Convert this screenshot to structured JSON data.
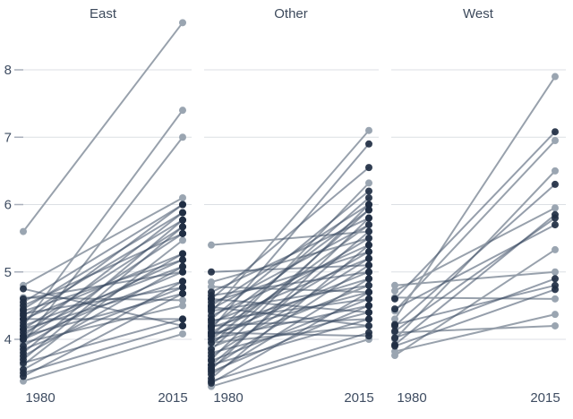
{
  "chart_data": {
    "type": "line",
    "subtype": "slopegraph",
    "title": "",
    "x_labels": [
      "1980",
      "2015"
    ],
    "y_ticks": [
      4,
      5,
      6,
      7,
      8
    ],
    "ylim": [
      3.2,
      8.8
    ],
    "grid": "horizontal-per-panel",
    "legend": "none",
    "panels": [
      {
        "label": "East",
        "series": [
          [
            5.6,
            8.7,
            "l"
          ],
          [
            4.2,
            7.4,
            "l"
          ],
          [
            3.95,
            7.0,
            "l"
          ],
          [
            4.8,
            6.1,
            "l"
          ],
          [
            4.55,
            6.0,
            "d"
          ],
          [
            4.25,
            6.0,
            "d"
          ],
          [
            4.45,
            5.88,
            "d"
          ],
          [
            4.05,
            5.88,
            "d"
          ],
          [
            3.8,
            5.77,
            "d"
          ],
          [
            4.35,
            5.77,
            "d"
          ],
          [
            4.15,
            5.67,
            "d"
          ],
          [
            3.7,
            5.67,
            "d"
          ],
          [
            4.0,
            5.57,
            "d"
          ],
          [
            4.5,
            5.57,
            "d"
          ],
          [
            3.62,
            5.47,
            "l"
          ],
          [
            4.3,
            5.27,
            "d"
          ],
          [
            3.9,
            5.27,
            "d"
          ],
          [
            4.1,
            5.18,
            "d"
          ],
          [
            4.42,
            5.18,
            "d"
          ],
          [
            3.75,
            5.08,
            "d"
          ],
          [
            4.2,
            5.08,
            "d"
          ],
          [
            4.0,
            5.0,
            "d"
          ],
          [
            4.6,
            5.0,
            "d"
          ],
          [
            3.55,
            4.86,
            "d"
          ],
          [
            4.15,
            4.86,
            "d"
          ],
          [
            3.85,
            4.77,
            "d"
          ],
          [
            4.38,
            4.77,
            "d"
          ],
          [
            3.45,
            4.68,
            "d"
          ],
          [
            4.05,
            4.68,
            "d"
          ],
          [
            4.62,
            4.58,
            "l"
          ],
          [
            3.95,
            4.5,
            "l"
          ],
          [
            4.3,
            4.3,
            "d"
          ],
          [
            3.65,
            4.3,
            "d"
          ],
          [
            3.5,
            4.2,
            "d"
          ],
          [
            4.75,
            4.2,
            "d"
          ],
          [
            3.38,
            4.08,
            "l"
          ]
        ]
      },
      {
        "label": "Other",
        "series": [
          [
            4.4,
            7.1,
            "l"
          ],
          [
            4.15,
            6.9,
            "d"
          ],
          [
            4.6,
            6.55,
            "d"
          ],
          [
            3.9,
            6.32,
            "l"
          ],
          [
            4.3,
            6.2,
            "d"
          ],
          [
            4.05,
            6.1,
            "d"
          ],
          [
            4.5,
            6.0,
            "d"
          ],
          [
            3.7,
            6.0,
            "d"
          ],
          [
            4.2,
            5.92,
            "d"
          ],
          [
            3.85,
            5.92,
            "d"
          ],
          [
            4.7,
            5.8,
            "d"
          ],
          [
            3.55,
            5.8,
            "d"
          ],
          [
            4.0,
            5.7,
            "l"
          ],
          [
            4.45,
            5.7,
            "d"
          ],
          [
            5.4,
            5.6,
            "l"
          ],
          [
            3.62,
            5.6,
            "d"
          ],
          [
            4.85,
            5.5,
            "l"
          ],
          [
            4.1,
            5.5,
            "d"
          ],
          [
            3.42,
            5.4,
            "d"
          ],
          [
            4.35,
            5.4,
            "d"
          ],
          [
            3.95,
            5.3,
            "d"
          ],
          [
            4.55,
            5.3,
            "d"
          ],
          [
            3.75,
            5.2,
            "d"
          ],
          [
            4.25,
            5.2,
            "d"
          ],
          [
            5.0,
            5.1,
            "d"
          ],
          [
            3.58,
            5.1,
            "d"
          ],
          [
            4.05,
            5.0,
            "d"
          ],
          [
            4.65,
            5.0,
            "d"
          ],
          [
            3.48,
            4.9,
            "d"
          ],
          [
            4.18,
            4.9,
            "d"
          ],
          [
            3.88,
            4.8,
            "l"
          ],
          [
            4.42,
            4.8,
            "d"
          ],
          [
            3.35,
            4.7,
            "d"
          ],
          [
            4.08,
            4.7,
            "d"
          ],
          [
            4.78,
            4.7,
            "l"
          ],
          [
            3.68,
            4.6,
            "d"
          ],
          [
            4.28,
            4.6,
            "d"
          ],
          [
            3.52,
            4.5,
            "d"
          ],
          [
            4.0,
            4.5,
            "d"
          ],
          [
            4.6,
            4.4,
            "d"
          ],
          [
            3.8,
            4.4,
            "d"
          ],
          [
            4.2,
            4.3,
            "d"
          ],
          [
            3.62,
            4.3,
            "d"
          ],
          [
            3.95,
            4.2,
            "l"
          ],
          [
            4.48,
            4.2,
            "d"
          ],
          [
            3.38,
            4.1,
            "d"
          ],
          [
            4.1,
            4.05,
            "d"
          ],
          [
            3.3,
            4.0,
            "l"
          ]
        ]
      },
      {
        "label": "West",
        "series": [
          [
            4.3,
            7.9,
            "l"
          ],
          [
            4.6,
            7.08,
            "d"
          ],
          [
            4.42,
            6.95,
            "l"
          ],
          [
            4.0,
            6.5,
            "l"
          ],
          [
            4.2,
            6.3,
            "d"
          ],
          [
            4.72,
            5.95,
            "l"
          ],
          [
            3.92,
            5.85,
            "d"
          ],
          [
            4.12,
            5.8,
            "d"
          ],
          [
            4.45,
            5.7,
            "d"
          ],
          [
            3.76,
            5.33,
            "l"
          ],
          [
            4.8,
            5.0,
            "l"
          ],
          [
            4.02,
            4.9,
            "d"
          ],
          [
            4.22,
            4.8,
            "d"
          ],
          [
            3.9,
            4.74,
            "d"
          ],
          [
            4.62,
            4.6,
            "l"
          ],
          [
            3.82,
            4.37,
            "l"
          ],
          [
            4.1,
            4.2,
            "l"
          ]
        ]
      }
    ],
    "colors": {
      "line_dark": "rgba(62,79,102,0.55)",
      "line_light": "rgba(146,156,168,0.95)",
      "dot_dark": "rgba(32,46,67,0.92)",
      "dot_light": "#9aa5b1",
      "gridline": "#dcdfe4",
      "tick_dash": "#a8afbb",
      "axis_text": "#3e4c61",
      "title_text": "#3d4a5c"
    }
  }
}
